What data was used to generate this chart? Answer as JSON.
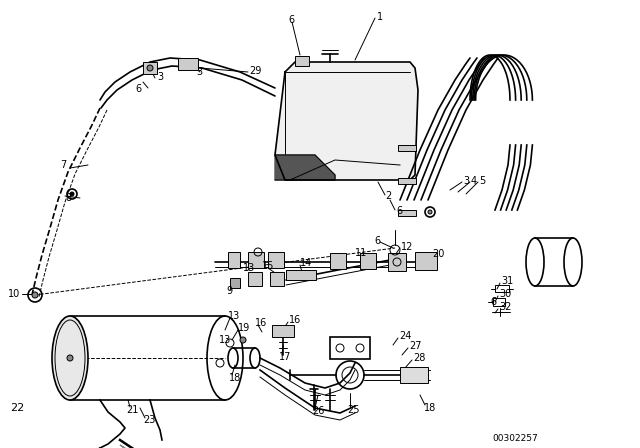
{
  "background_color": "#ffffff",
  "line_color": "#000000",
  "figsize": [
    6.4,
    4.48
  ],
  "dpi": 100,
  "diagram_code": "00302257"
}
